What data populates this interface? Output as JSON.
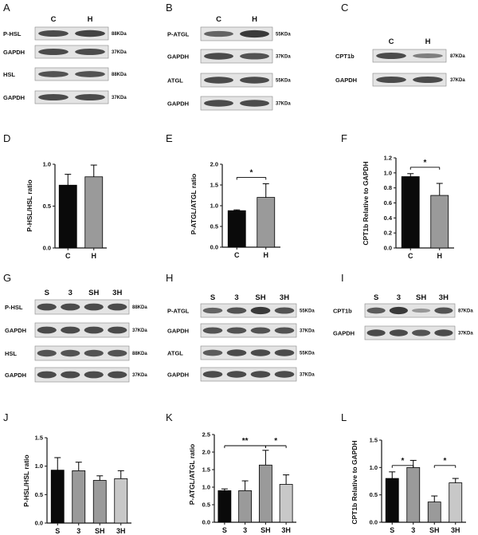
{
  "figure": {
    "panels": {
      "A": {
        "label": "A",
        "lanes": [
          "C",
          "H"
        ],
        "rows": [
          {
            "label": "P-HSL",
            "kda": "88KDa"
          },
          {
            "label": "GAPDH",
            "kda": "37KDa"
          },
          {
            "label": "HSL",
            "kda": "88KDa"
          },
          {
            "label": "GAPDH",
            "kda": "37KDa"
          }
        ]
      },
      "B": {
        "label": "B",
        "lanes": [
          "C",
          "H"
        ],
        "rows": [
          {
            "label": "P-ATGL",
            "kda": "55KDa"
          },
          {
            "label": "GAPDH",
            "kda": "37KDa"
          },
          {
            "label": "ATGL",
            "kda": "55KDa"
          },
          {
            "label": "GAPDH",
            "kda": "37KDa"
          }
        ]
      },
      "C": {
        "label": "C",
        "lanes": [
          "C",
          "H"
        ],
        "rows": [
          {
            "label": "CPT1b",
            "kda": "87KDa"
          },
          {
            "label": "GAPDH",
            "kda": "37KDa"
          }
        ]
      },
      "G": {
        "label": "G",
        "lanes": [
          "S",
          "3",
          "SH",
          "3H"
        ],
        "rows": [
          {
            "label": "P-HSL",
            "kda": "88KDa"
          },
          {
            "label": "GAPDH",
            "kda": "37KDa"
          },
          {
            "label": "HSL",
            "kda": "88KDa"
          },
          {
            "label": "GAPDH",
            "kda": "37KDa"
          }
        ]
      },
      "H": {
        "label": "H",
        "lanes": [
          "S",
          "3",
          "SH",
          "3H"
        ],
        "rows": [
          {
            "label": "P-ATGL",
            "kda": "55KDa"
          },
          {
            "label": "GAPDH",
            "kda": "37KDa"
          },
          {
            "label": "ATGL",
            "kda": "55KDa"
          },
          {
            "label": "GAPDH",
            "kda": "37KDa"
          }
        ]
      },
      "I": {
        "label": "I",
        "lanes": [
          "S",
          "3",
          "SH",
          "3H"
        ],
        "rows": [
          {
            "label": "CPT1b",
            "kda": "87KDa"
          },
          {
            "label": "GAPDH",
            "kda": "37KDa"
          }
        ]
      },
      "D": {
        "label": "D"
      },
      "E": {
        "label": "E"
      },
      "F": {
        "label": "F"
      },
      "J": {
        "label": "J"
      },
      "K": {
        "label": "K"
      },
      "L": {
        "label": "L"
      }
    },
    "colors": {
      "bar_dark": "#0a0a0a",
      "bar_light": "#9a9a9a",
      "bar_light2": "#c8c8c8",
      "axis": "#111111"
    }
  },
  "chart_data": [
    {
      "id": "D",
      "type": "bar",
      "categories": [
        "C",
        "H"
      ],
      "values": [
        0.75,
        0.85
      ],
      "errors": [
        0.13,
        0.14
      ],
      "ylabel": "P-HSL/HSL ratio",
      "ylim": [
        0,
        1.0
      ],
      "yticks": [
        "0.0",
        "0.5",
        "1.0"
      ],
      "significance": []
    },
    {
      "id": "E",
      "type": "bar",
      "categories": [
        "C",
        "H"
      ],
      "values": [
        0.88,
        1.2
      ],
      "errors": [
        0.02,
        0.33
      ],
      "ylabel": "P-ATGL/ATGL ratio",
      "ylim": [
        0,
        2.0
      ],
      "yticks": [
        "0.0",
        "0.5",
        "1.0",
        "1.5",
        "2.0"
      ],
      "significance": [
        {
          "from": 0,
          "to": 1,
          "label": "*"
        }
      ]
    },
    {
      "id": "F",
      "type": "bar",
      "categories": [
        "C",
        "H"
      ],
      "values": [
        0.95,
        0.7
      ],
      "errors": [
        0.04,
        0.16
      ],
      "ylabel": "CPT1b Relative to GAPDH",
      "ylim": [
        0,
        1.2
      ],
      "yticks": [
        "0.0",
        "0.2",
        "0.4",
        "0.6",
        "0.8",
        "1.0",
        "1.2"
      ],
      "significance": [
        {
          "from": 0,
          "to": 1,
          "label": "*"
        }
      ]
    },
    {
      "id": "J",
      "type": "bar",
      "categories": [
        "S",
        "3",
        "SH",
        "3H"
      ],
      "values": [
        0.93,
        0.92,
        0.75,
        0.78
      ],
      "errors": [
        0.22,
        0.15,
        0.08,
        0.14
      ],
      "ylabel": "P-HSL/HSL ratio",
      "ylim": [
        0,
        1.5
      ],
      "yticks": [
        "0.0",
        "0.5",
        "1.0",
        "1.5"
      ],
      "significance": []
    },
    {
      "id": "K",
      "type": "bar",
      "categories": [
        "S",
        "3",
        "SH",
        "3H"
      ],
      "values": [
        0.9,
        0.9,
        1.63,
        1.08
      ],
      "errors": [
        0.05,
        0.28,
        0.42,
        0.27
      ],
      "ylabel": "P-ATGL/ATGL ratio",
      "ylim": [
        0,
        2.5
      ],
      "yticks": [
        "0.0",
        "0.5",
        "1.0",
        "1.5",
        "2.0",
        "2.5"
      ],
      "significance": [
        {
          "from": 0,
          "to": 2,
          "label": "**"
        },
        {
          "from": 2,
          "to": 3,
          "label": "*"
        }
      ]
    },
    {
      "id": "L",
      "type": "bar",
      "categories": [
        "S",
        "3",
        "SH",
        "3H"
      ],
      "values": [
        0.8,
        1.0,
        0.37,
        0.72
      ],
      "errors": [
        0.12,
        0.13,
        0.11,
        0.08
      ],
      "ylabel": "CPT1b Relative to GAPDH",
      "ylim": [
        0,
        1.5
      ],
      "yticks": [
        "0.0",
        "0.5",
        "1.0",
        "1.5"
      ],
      "significance": [
        {
          "from": 0,
          "to": 1,
          "label": "*"
        },
        {
          "from": 2,
          "to": 3,
          "label": "*"
        }
      ]
    }
  ]
}
